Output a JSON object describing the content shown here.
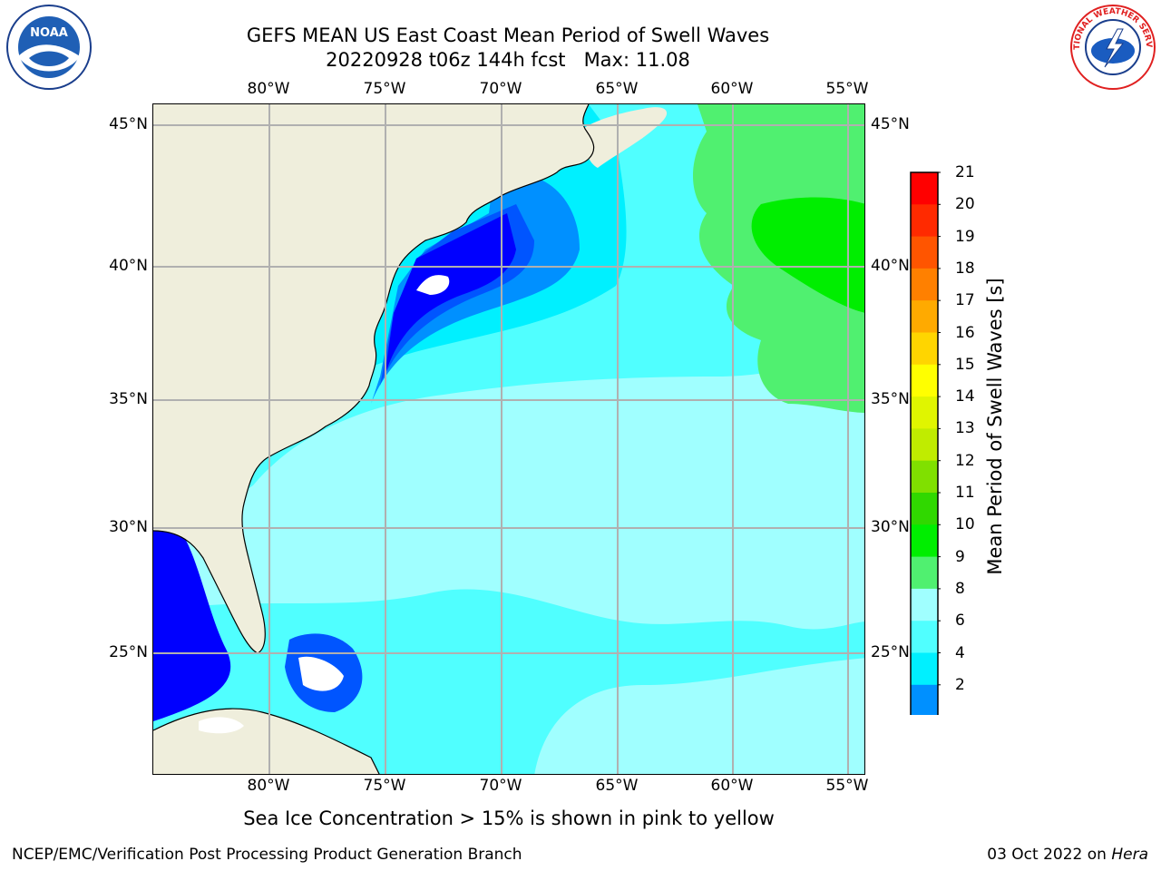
{
  "title": {
    "line1": "GEFS MEAN US East Coast Mean Period of Swell Waves",
    "line2": "20220928 t06z 144h fcst   Max: 11.08"
  },
  "map": {
    "lon_labels": [
      "80°W",
      "75°W",
      "70°W",
      "65°W",
      "60°W",
      "55°W"
    ],
    "lat_labels": [
      "45°N",
      "40°N",
      "35°N",
      "30°N",
      "25°N"
    ]
  },
  "colorbar": {
    "title": "Mean Period of Swell Waves [s]",
    "tick_labels": [
      "21",
      "20",
      "19",
      "18",
      "17",
      "16",
      "15",
      "14",
      "13",
      "12",
      "11",
      "10",
      "9",
      "8",
      "6",
      "4",
      "2"
    ],
    "colors": [
      "#ff0000",
      "#ff2a00",
      "#ff5500",
      "#ff8000",
      "#ffaa00",
      "#ffd500",
      "#ffff00",
      "#e0f500",
      "#c0ec00",
      "#80e000",
      "#30d800",
      "#00ee00",
      "#50f070",
      "#a0ffff",
      "#50ffff",
      "#00f0ff",
      "#0090ff",
      "#0055ff"
    ],
    "extend_color": "#0000ff"
  },
  "palette": {
    "land": "#efeedc",
    "deep_blue": "#0000ff",
    "blue2": "#0055ff",
    "blue3": "#0090ff",
    "cyan": "#00f0ff",
    "light_cyan": "#50ffff",
    "pale_cyan": "#a0ffff",
    "green": "#50f070",
    "bright_green": "#00ee00",
    "grid": "#b0b0b0"
  },
  "note": "Sea Ice Concentration > 15% is shown in pink to yellow",
  "footer": {
    "left": "NCEP/EMC/Verification Post Processing Product Generation Branch",
    "date": "03 Oct 2022 on ",
    "host": "Hera"
  },
  "logos": {
    "noaa": "NOAA",
    "nws": "NATIONAL WEATHER SERVICE"
  }
}
